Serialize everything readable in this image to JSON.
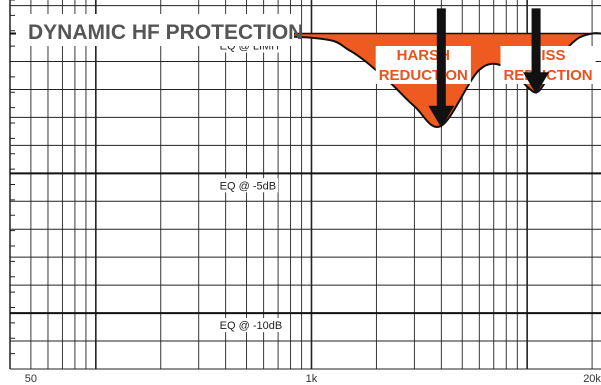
{
  "chart_data": {
    "type": "line",
    "title": "DYNAMIC HF PROTECTION",
    "x_scale": "log",
    "xlim": [
      40,
      22000
    ],
    "ylim": [
      -12,
      1.2
    ],
    "grid": true,
    "x_tick_labels": [
      {
        "value": 50,
        "label": "50"
      },
      {
        "value": 1000,
        "label": "1k"
      },
      {
        "value": 20000,
        "label": "20k"
      }
    ],
    "x": [
      40,
      200,
      1000,
      1500,
      2200,
      3000,
      4000,
      6000,
      8000,
      10000,
      11000,
      12000,
      14000,
      17000,
      20000,
      22000
    ],
    "series": [
      {
        "name": "EQ @ LIMIT",
        "color": "#111111",
        "values": [
          0,
          0,
          -0.15,
          -0.6,
          -1.6,
          -2.6,
          -3.3,
          -1.3,
          -1.2,
          -1.9,
          -2.1,
          -1.8,
          -0.9,
          -0.2,
          0,
          0
        ]
      },
      {
        "name": "EQ @ -5dB",
        "color": "#111111",
        "values": [
          -5,
          -5,
          -5,
          -5,
          -5,
          -5,
          -5,
          -5,
          -5,
          -5,
          -5,
          -5,
          -5,
          -5,
          -5,
          -5
        ]
      },
      {
        "name": "EQ @ -10dB",
        "color": "#111111",
        "values": [
          -10,
          -10,
          -10,
          -10,
          -10,
          -10,
          -10,
          -10,
          -10,
          -10,
          -10,
          -10,
          -10,
          -10,
          -10,
          -10
        ]
      }
    ],
    "fill": {
      "between": [
        "reference",
        "EQ @ LIMIT"
      ],
      "color": "#ef5a21"
    },
    "annotations": [
      {
        "line1": "HARSH",
        "line2": "REDUCTION",
        "arrow_x": 4000,
        "arrow_y_from": 0.9,
        "arrow_y_to": -3.3,
        "text_x": 3300,
        "color": "#e8541f"
      },
      {
        "line1": "HISS",
        "line2": "REDUCTION",
        "arrow_x": 11000,
        "arrow_y_from": 0.9,
        "arrow_y_to": -2.1,
        "text_x": 12500,
        "color": "#e8541f"
      }
    ]
  }
}
